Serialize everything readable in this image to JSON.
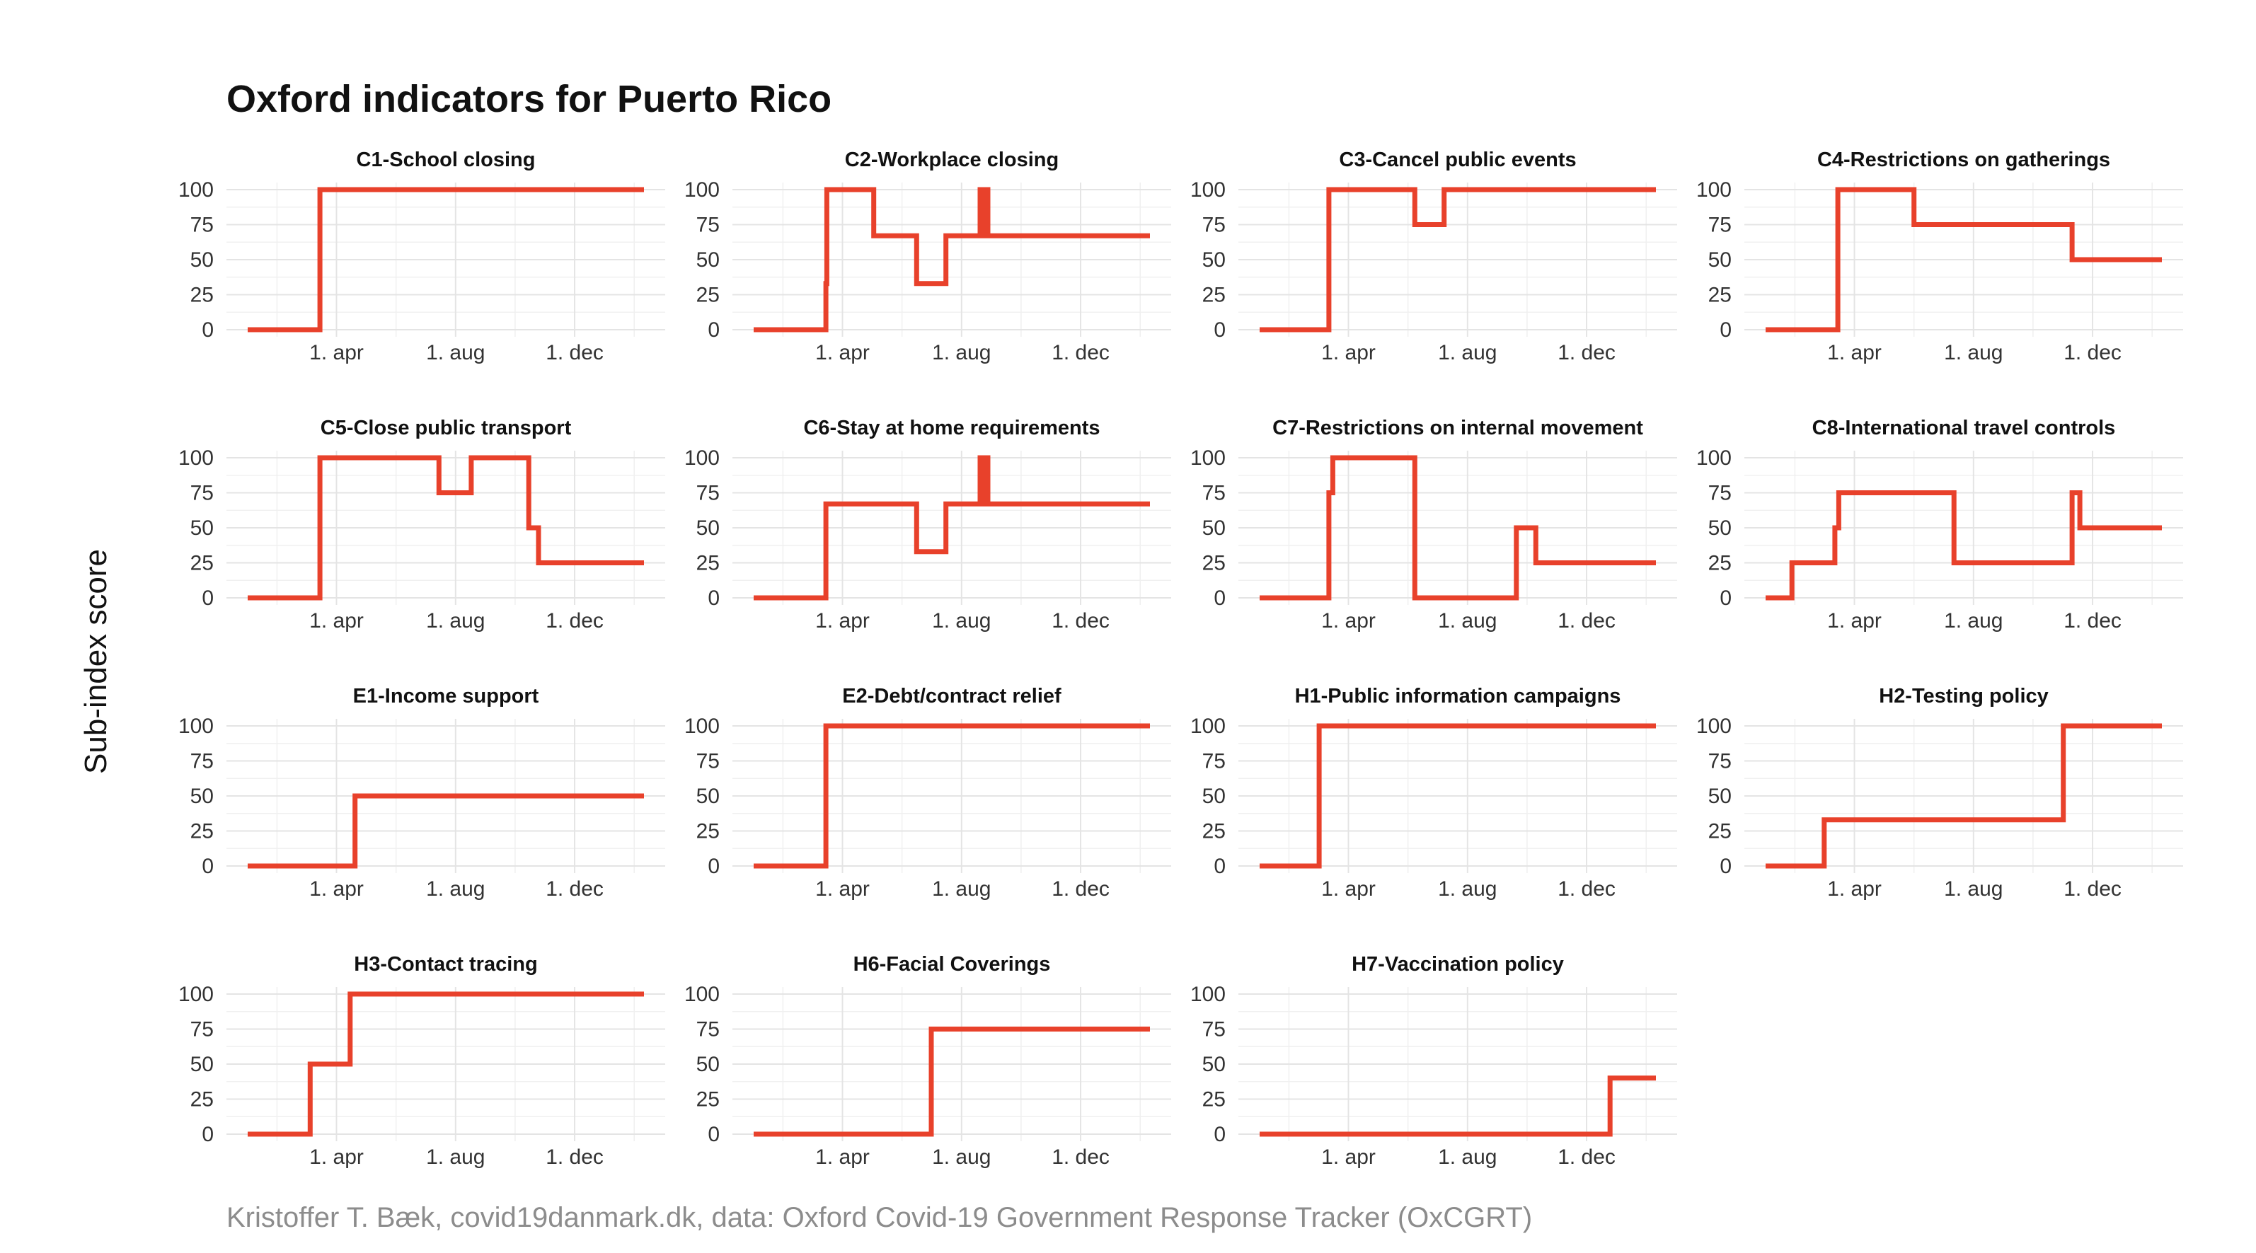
{
  "title": "Oxford indicators for Puerto Rico",
  "ylabel": "Sub-index score",
  "caption": "Kristoffer T. Bæk, covid19danmark.dk, data: Oxford Covid-19 Government Response Tracker (OxCGRT)",
  "line_color": "#e8412b",
  "chart_data": {
    "type": "line",
    "x_unit": "date (2020-01-01 to 2021-02-10)",
    "x_range": [
      "2020-01-01",
      "2021-02-10"
    ],
    "x_ticks": [
      {
        "date": "2020-04-01",
        "label": "1. apr"
      },
      {
        "date": "2020-08-01",
        "label": "1. aug"
      },
      {
        "date": "2020-12-01",
        "label": "1. dec"
      }
    ],
    "ylim": [
      0,
      100
    ],
    "y_ticks": [
      0,
      25,
      50,
      75,
      100
    ],
    "panels": [
      {
        "title": "C1-School closing",
        "points": [
          [
            "2020-01-01",
            0
          ],
          [
            "2020-03-15",
            0
          ],
          [
            "2020-03-15",
            100
          ],
          [
            "2021-02-10",
            100
          ]
        ]
      },
      {
        "title": "C2-Workplace closing",
        "points": [
          [
            "2020-01-01",
            0
          ],
          [
            "2020-03-15",
            0
          ],
          [
            "2020-03-15",
            33
          ],
          [
            "2020-03-16",
            33
          ],
          [
            "2020-03-16",
            100
          ],
          [
            "2020-05-03",
            100
          ],
          [
            "2020-05-03",
            67
          ],
          [
            "2020-06-16",
            67
          ],
          [
            "2020-06-16",
            33
          ],
          [
            "2020-07-16",
            33
          ],
          [
            "2020-07-16",
            67
          ],
          [
            "2020-08-20",
            67
          ],
          [
            "2020-08-20",
            100
          ],
          [
            "2020-08-22",
            100
          ],
          [
            "2020-08-22",
            67
          ],
          [
            "2020-08-26",
            67
          ],
          [
            "2020-08-26",
            100
          ],
          [
            "2020-08-28",
            100
          ],
          [
            "2020-08-28",
            67
          ],
          [
            "2021-02-10",
            67
          ]
        ]
      },
      {
        "title": "C3-Cancel public events",
        "points": [
          [
            "2020-01-01",
            0
          ],
          [
            "2020-03-12",
            0
          ],
          [
            "2020-03-12",
            100
          ],
          [
            "2020-06-08",
            100
          ],
          [
            "2020-06-08",
            75
          ],
          [
            "2020-07-08",
            75
          ],
          [
            "2020-07-08",
            100
          ],
          [
            "2021-02-10",
            100
          ]
        ]
      },
      {
        "title": "C4-Restrictions on gatherings",
        "points": [
          [
            "2020-01-01",
            0
          ],
          [
            "2020-03-15",
            0
          ],
          [
            "2020-03-15",
            100
          ],
          [
            "2020-06-01",
            100
          ],
          [
            "2020-06-01",
            75
          ],
          [
            "2020-11-10",
            75
          ],
          [
            "2020-11-10",
            50
          ],
          [
            "2021-02-10",
            50
          ]
        ]
      },
      {
        "title": "C5-Close public transport",
        "points": [
          [
            "2020-01-01",
            0
          ],
          [
            "2020-03-15",
            0
          ],
          [
            "2020-03-15",
            100
          ],
          [
            "2020-07-15",
            100
          ],
          [
            "2020-07-15",
            75
          ],
          [
            "2020-08-17",
            75
          ],
          [
            "2020-08-17",
            100
          ],
          [
            "2020-10-15",
            100
          ],
          [
            "2020-10-15",
            50
          ],
          [
            "2020-10-25",
            50
          ],
          [
            "2020-10-25",
            25
          ],
          [
            "2021-02-10",
            25
          ]
        ]
      },
      {
        "title": "C6-Stay at home requirements",
        "points": [
          [
            "2020-01-01",
            0
          ],
          [
            "2020-03-15",
            0
          ],
          [
            "2020-03-15",
            67
          ],
          [
            "2020-06-16",
            67
          ],
          [
            "2020-06-16",
            33
          ],
          [
            "2020-07-16",
            33
          ],
          [
            "2020-07-16",
            67
          ],
          [
            "2020-08-20",
            67
          ],
          [
            "2020-08-20",
            100
          ],
          [
            "2020-08-22",
            100
          ],
          [
            "2020-08-22",
            67
          ],
          [
            "2020-08-26",
            67
          ],
          [
            "2020-08-26",
            100
          ],
          [
            "2020-08-28",
            100
          ],
          [
            "2020-08-28",
            67
          ],
          [
            "2021-02-10",
            67
          ]
        ]
      },
      {
        "title": "C7-Restrictions on internal movement",
        "points": [
          [
            "2020-01-01",
            0
          ],
          [
            "2020-03-12",
            0
          ],
          [
            "2020-03-12",
            75
          ],
          [
            "2020-03-16",
            75
          ],
          [
            "2020-03-16",
            100
          ],
          [
            "2020-06-08",
            100
          ],
          [
            "2020-06-08",
            0
          ],
          [
            "2020-09-20",
            0
          ],
          [
            "2020-09-20",
            50
          ],
          [
            "2020-10-10",
            50
          ],
          [
            "2020-10-10",
            25
          ],
          [
            "2021-02-10",
            25
          ]
        ]
      },
      {
        "title": "C8-International travel controls",
        "points": [
          [
            "2020-01-01",
            0
          ],
          [
            "2020-01-28",
            0
          ],
          [
            "2020-01-28",
            25
          ],
          [
            "2020-03-12",
            25
          ],
          [
            "2020-03-12",
            50
          ],
          [
            "2020-03-16",
            50
          ],
          [
            "2020-03-16",
            75
          ],
          [
            "2020-07-12",
            75
          ],
          [
            "2020-07-12",
            25
          ],
          [
            "2020-11-10",
            25
          ],
          [
            "2020-11-10",
            75
          ],
          [
            "2020-11-18",
            75
          ],
          [
            "2020-11-18",
            50
          ],
          [
            "2021-02-10",
            50
          ]
        ]
      },
      {
        "title": "E1-Income support",
        "points": [
          [
            "2020-01-01",
            0
          ],
          [
            "2020-04-20",
            0
          ],
          [
            "2020-04-20",
            50
          ],
          [
            "2021-02-10",
            50
          ]
        ]
      },
      {
        "title": "E2-Debt/contract relief",
        "points": [
          [
            "2020-01-01",
            0
          ],
          [
            "2020-03-15",
            0
          ],
          [
            "2020-03-15",
            100
          ],
          [
            "2021-02-10",
            100
          ]
        ]
      },
      {
        "title": "H1-Public information campaigns",
        "points": [
          [
            "2020-01-01",
            0
          ],
          [
            "2020-03-02",
            0
          ],
          [
            "2020-03-02",
            100
          ],
          [
            "2021-02-10",
            100
          ]
        ]
      },
      {
        "title": "H2-Testing policy",
        "points": [
          [
            "2020-01-01",
            0
          ],
          [
            "2020-03-01",
            0
          ],
          [
            "2020-03-01",
            33
          ],
          [
            "2020-11-01",
            33
          ],
          [
            "2020-11-01",
            100
          ],
          [
            "2021-02-10",
            100
          ]
        ]
      },
      {
        "title": "H3-Contact tracing",
        "points": [
          [
            "2020-01-01",
            0
          ],
          [
            "2020-03-05",
            0
          ],
          [
            "2020-03-05",
            50
          ],
          [
            "2020-04-15",
            50
          ],
          [
            "2020-04-15",
            100
          ],
          [
            "2021-02-10",
            100
          ]
        ]
      },
      {
        "title": "H6-Facial Coverings",
        "points": [
          [
            "2020-01-01",
            0
          ],
          [
            "2020-07-01",
            0
          ],
          [
            "2020-07-01",
            75
          ],
          [
            "2021-02-10",
            75
          ]
        ]
      },
      {
        "title": "H7-Vaccination policy",
        "points": [
          [
            "2020-01-01",
            0
          ],
          [
            "2020-12-25",
            0
          ],
          [
            "2020-12-25",
            40
          ],
          [
            "2021-02-10",
            40
          ]
        ]
      }
    ]
  }
}
